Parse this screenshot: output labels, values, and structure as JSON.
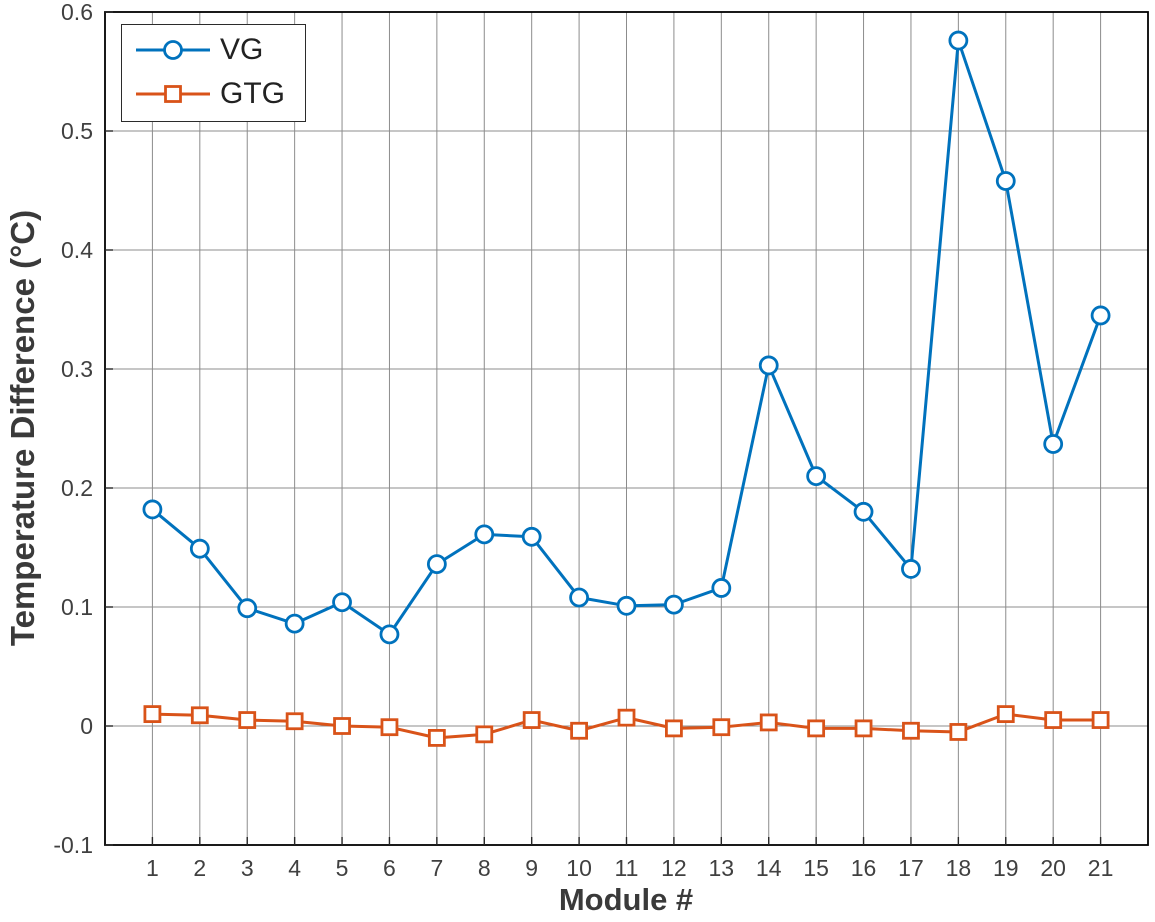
{
  "chart_data": {
    "type": "line",
    "title": "",
    "xlabel": "Module #",
    "ylabel": "Temperature Difference (°C)",
    "xlim": [
      0,
      22
    ],
    "ylim": [
      -0.1,
      0.6
    ],
    "grid": true,
    "legend_position": "top-left",
    "x": [
      1,
      2,
      3,
      4,
      5,
      6,
      7,
      8,
      9,
      10,
      11,
      12,
      13,
      14,
      15,
      16,
      17,
      18,
      19,
      20,
      21
    ],
    "xtick_labels": [
      "1",
      "2",
      "3",
      "4",
      "5",
      "6",
      "7",
      "8",
      "9",
      "10",
      "11",
      "12",
      "13",
      "14",
      "15",
      "16",
      "17",
      "18",
      "19",
      "20",
      "21"
    ],
    "yticks": [
      -0.1,
      0,
      0.1,
      0.2,
      0.3,
      0.4,
      0.5,
      0.6
    ],
    "ytick_labels": [
      "-0.1",
      "0",
      "0.1",
      "0.2",
      "0.3",
      "0.4",
      "0.5",
      "0.6"
    ],
    "series": [
      {
        "name": "VG",
        "color": "#0072BD",
        "marker": "circle",
        "values": [
          0.182,
          0.149,
          0.099,
          0.086,
          0.104,
          0.077,
          0.136,
          0.161,
          0.159,
          0.108,
          0.101,
          0.102,
          0.116,
          0.303,
          0.21,
          0.18,
          0.132,
          0.576,
          0.458,
          0.237,
          0.345
        ]
      },
      {
        "name": "GTG",
        "color": "#D95319",
        "marker": "square",
        "values": [
          0.01,
          0.009,
          0.005,
          0.004,
          0.0,
          -0.001,
          -0.01,
          -0.007,
          0.005,
          -0.004,
          0.007,
          -0.002,
          -0.001,
          0.003,
          -0.002,
          -0.002,
          -0.004,
          -0.005,
          0.01,
          0.005,
          0.005
        ]
      }
    ]
  }
}
